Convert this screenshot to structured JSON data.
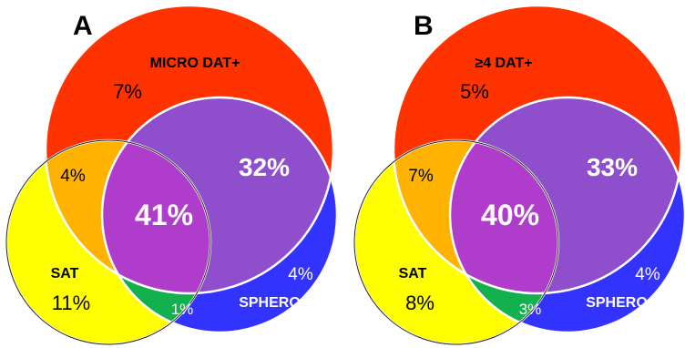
{
  "colors": {
    "red": "#ff3300",
    "yellow": "#ffff00",
    "blue": "#3333ff",
    "orange": "#ffb300",
    "purple": "#8f4fcc",
    "magenta": "#b03ccc",
    "green": "#13b04e",
    "outline": "#ffffff"
  },
  "panels": [
    {
      "label": "A",
      "top_set_label": "MICRO DAT+",
      "sat_label": "SAT",
      "sphero_label": "SPHERO",
      "regions": {
        "top_only": "7%",
        "top_sat": "4%",
        "top_sphero": "32%",
        "all_three": "41%",
        "sphero_only": "4%",
        "sat_only": "11%",
        "sat_sphero": "1%"
      }
    },
    {
      "label": "B",
      "top_set_label": "≥4 DAT+",
      "sat_label": "SAT",
      "sphero_label": "SPHERO",
      "regions": {
        "top_only": "5%",
        "top_sat": "7%",
        "top_sphero": "33%",
        "all_three": "40%",
        "sphero_only": "4%",
        "sat_only": "8%",
        "sat_sphero": "3%"
      }
    }
  ]
}
